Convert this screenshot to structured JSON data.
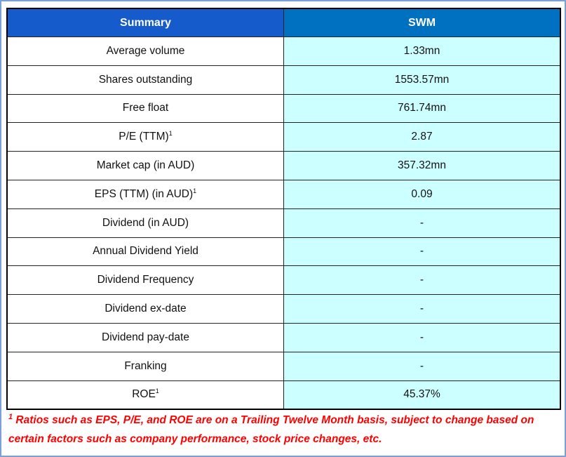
{
  "header": {
    "left": "Summary",
    "right": "SWM"
  },
  "rows": [
    {
      "label": "Average volume",
      "sup": "",
      "value": "1.33mn"
    },
    {
      "label": "Shares outstanding",
      "sup": "",
      "value": "1553.57mn"
    },
    {
      "label": "Free float",
      "sup": "",
      "value": "761.74mn"
    },
    {
      "label": "P/E (TTM)",
      "sup": "1",
      "value": "2.87"
    },
    {
      "label": "Market cap (in AUD)",
      "sup": "",
      "value": "357.32mn"
    },
    {
      "label": "EPS (TTM) (in AUD)",
      "sup": "1",
      "value": "0.09"
    },
    {
      "label": "Dividend (in AUD)",
      "sup": "",
      "value": "-"
    },
    {
      "label": "Annual Dividend Yield",
      "sup": "",
      "value": "-"
    },
    {
      "label": "Dividend Frequency",
      "sup": "",
      "value": "-"
    },
    {
      "label": "Dividend ex-date",
      "sup": "",
      "value": "-"
    },
    {
      "label": "Dividend pay-date",
      "sup": "",
      "value": "-"
    },
    {
      "label": "Franking",
      "sup": "",
      "value": "-"
    },
    {
      "label": "ROE",
      "sup": "1",
      "value": "45.37%"
    }
  ],
  "footnote": {
    "marker": "1",
    "text": " Ratios such as EPS, P/E, and ROE are on a Trailing Twelve Month basis, subject to change based on certain factors such as company performance, stock price changes, etc."
  },
  "colors": {
    "header_left": "#155bcb",
    "header_right": "#0070c0",
    "value_bg": "#ccffff",
    "footnote": "#ff0000"
  }
}
